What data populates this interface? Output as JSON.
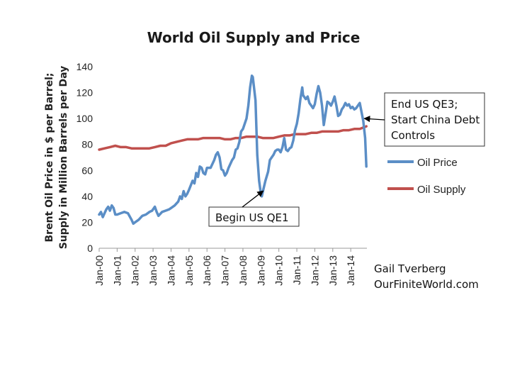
{
  "chart_data": {
    "type": "line",
    "title": "World Oil Supply and Price",
    "ylabel_lines": [
      "Brent Oil Price in $ per Barrel;",
      "Supply in Million Barrels per Day"
    ],
    "xlabel": "",
    "ylim": [
      0,
      140
    ],
    "yticks": [
      0,
      20,
      40,
      60,
      80,
      100,
      120,
      140
    ],
    "xlim": [
      2000,
      2014.9
    ],
    "xticks": [
      {
        "x": 2000,
        "label": "Jan-00"
      },
      {
        "x": 2001,
        "label": "Jan-01"
      },
      {
        "x": 2002,
        "label": "Jan-02"
      },
      {
        "x": 2003,
        "label": "Jan-03"
      },
      {
        "x": 2004,
        "label": "Jan-04"
      },
      {
        "x": 2005,
        "label": "Jan-05"
      },
      {
        "x": 2006,
        "label": "Jan-06"
      },
      {
        "x": 2007,
        "label": "Jan-07"
      },
      {
        "x": 2008,
        "label": "Jan-08"
      },
      {
        "x": 2009,
        "label": "Jan-09"
      },
      {
        "x": 2010,
        "label": "Jan-10"
      },
      {
        "x": 2011,
        "label": "Jan-11"
      },
      {
        "x": 2012,
        "label": "Jan-12"
      },
      {
        "x": 2013,
        "label": "Jan-13"
      },
      {
        "x": 2014,
        "label": "Jan-14"
      }
    ],
    "grid": false,
    "legend_position": "right",
    "series": [
      {
        "name": "Oil Price",
        "color": "#5b8ec6",
        "points": [
          [
            2000.0,
            26
          ],
          [
            2000.1,
            28
          ],
          [
            2000.2,
            24
          ],
          [
            2000.3,
            27
          ],
          [
            2000.4,
            30
          ],
          [
            2000.5,
            32
          ],
          [
            2000.6,
            29
          ],
          [
            2000.7,
            33
          ],
          [
            2000.8,
            31
          ],
          [
            2000.9,
            26
          ],
          [
            2001.0,
            26
          ],
          [
            2001.2,
            27
          ],
          [
            2001.4,
            28
          ],
          [
            2001.6,
            27
          ],
          [
            2001.8,
            22
          ],
          [
            2001.9,
            19
          ],
          [
            2002.0,
            20
          ],
          [
            2002.2,
            22
          ],
          [
            2002.4,
            25
          ],
          [
            2002.6,
            26
          ],
          [
            2002.8,
            28
          ],
          [
            2002.95,
            29
          ],
          [
            2003.1,
            32
          ],
          [
            2003.2,
            28
          ],
          [
            2003.3,
            25
          ],
          [
            2003.5,
            28
          ],
          [
            2003.7,
            29
          ],
          [
            2003.9,
            30
          ],
          [
            2004.0,
            31
          ],
          [
            2004.2,
            33
          ],
          [
            2004.4,
            36
          ],
          [
            2004.5,
            40
          ],
          [
            2004.6,
            38
          ],
          [
            2004.7,
            44
          ],
          [
            2004.8,
            40
          ],
          [
            2004.9,
            42
          ],
          [
            2005.0,
            45
          ],
          [
            2005.2,
            52
          ],
          [
            2005.3,
            50
          ],
          [
            2005.4,
            58
          ],
          [
            2005.5,
            55
          ],
          [
            2005.6,
            63
          ],
          [
            2005.7,
            62
          ],
          [
            2005.8,
            58
          ],
          [
            2005.9,
            57
          ],
          [
            2006.0,
            62
          ],
          [
            2006.2,
            62
          ],
          [
            2006.4,
            68
          ],
          [
            2006.5,
            72
          ],
          [
            2006.6,
            74
          ],
          [
            2006.7,
            70
          ],
          [
            2006.8,
            61
          ],
          [
            2006.9,
            60
          ],
          [
            2007.0,
            56
          ],
          [
            2007.1,
            58
          ],
          [
            2007.2,
            62
          ],
          [
            2007.4,
            68
          ],
          [
            2007.5,
            70
          ],
          [
            2007.6,
            76
          ],
          [
            2007.7,
            77
          ],
          [
            2007.8,
            82
          ],
          [
            2007.9,
            90
          ],
          [
            2008.0,
            92
          ],
          [
            2008.2,
            100
          ],
          [
            2008.3,
            110
          ],
          [
            2008.4,
            124
          ],
          [
            2008.5,
            133
          ],
          [
            2008.55,
            132
          ],
          [
            2008.7,
            114
          ],
          [
            2008.8,
            72
          ],
          [
            2008.9,
            52
          ],
          [
            2009.0,
            42
          ],
          [
            2009.05,
            40
          ],
          [
            2009.15,
            46
          ],
          [
            2009.25,
            52
          ],
          [
            2009.4,
            59
          ],
          [
            2009.5,
            68
          ],
          [
            2009.6,
            70
          ],
          [
            2009.7,
            72
          ],
          [
            2009.8,
            75
          ],
          [
            2009.9,
            76
          ],
          [
            2010.0,
            76
          ],
          [
            2010.1,
            74
          ],
          [
            2010.2,
            78
          ],
          [
            2010.3,
            85
          ],
          [
            2010.4,
            76
          ],
          [
            2010.5,
            75
          ],
          [
            2010.6,
            77
          ],
          [
            2010.7,
            78
          ],
          [
            2010.8,
            83
          ],
          [
            2010.9,
            91
          ],
          [
            2011.0,
            96
          ],
          [
            2011.1,
            104
          ],
          [
            2011.2,
            115
          ],
          [
            2011.3,
            124
          ],
          [
            2011.35,
            118
          ],
          [
            2011.5,
            115
          ],
          [
            2011.6,
            117
          ],
          [
            2011.7,
            112
          ],
          [
            2011.8,
            110
          ],
          [
            2011.9,
            108
          ],
          [
            2012.0,
            111
          ],
          [
            2012.1,
            119
          ],
          [
            2012.2,
            125
          ],
          [
            2012.3,
            120
          ],
          [
            2012.4,
            110
          ],
          [
            2012.5,
            95
          ],
          [
            2012.6,
            104
          ],
          [
            2012.7,
            113
          ],
          [
            2012.8,
            112
          ],
          [
            2012.9,
            110
          ],
          [
            2013.0,
            113
          ],
          [
            2013.1,
            117
          ],
          [
            2013.2,
            110
          ],
          [
            2013.3,
            102
          ],
          [
            2013.4,
            103
          ],
          [
            2013.5,
            107
          ],
          [
            2013.6,
            109
          ],
          [
            2013.7,
            112
          ],
          [
            2013.8,
            110
          ],
          [
            2013.9,
            111
          ],
          [
            2014.0,
            108
          ],
          [
            2014.1,
            109
          ],
          [
            2014.2,
            107
          ],
          [
            2014.3,
            108
          ],
          [
            2014.4,
            110
          ],
          [
            2014.5,
            112
          ],
          [
            2014.6,
            105
          ],
          [
            2014.7,
            98
          ],
          [
            2014.8,
            85
          ],
          [
            2014.87,
            63
          ]
        ]
      },
      {
        "name": "Oil Supply",
        "color": "#c0504d",
        "points": [
          [
            2000.0,
            76
          ],
          [
            2000.3,
            77
          ],
          [
            2000.6,
            78
          ],
          [
            2000.9,
            79
          ],
          [
            2001.2,
            78
          ],
          [
            2001.5,
            78
          ],
          [
            2001.8,
            77
          ],
          [
            2002.1,
            77
          ],
          [
            2002.5,
            77
          ],
          [
            2002.8,
            77
          ],
          [
            2003.1,
            78
          ],
          [
            2003.4,
            79
          ],
          [
            2003.7,
            79
          ],
          [
            2004.0,
            81
          ],
          [
            2004.3,
            82
          ],
          [
            2004.6,
            83
          ],
          [
            2004.9,
            84
          ],
          [
            2005.2,
            84
          ],
          [
            2005.5,
            84
          ],
          [
            2005.8,
            85
          ],
          [
            2006.1,
            85
          ],
          [
            2006.4,
            85
          ],
          [
            2006.7,
            85
          ],
          [
            2007.0,
            84
          ],
          [
            2007.3,
            84
          ],
          [
            2007.6,
            85
          ],
          [
            2007.9,
            85
          ],
          [
            2008.2,
            86
          ],
          [
            2008.5,
            86
          ],
          [
            2008.8,
            86
          ],
          [
            2009.1,
            85
          ],
          [
            2009.4,
            85
          ],
          [
            2009.7,
            85
          ],
          [
            2010.0,
            86
          ],
          [
            2010.3,
            87
          ],
          [
            2010.6,
            87
          ],
          [
            2010.9,
            88
          ],
          [
            2011.2,
            88
          ],
          [
            2011.5,
            88
          ],
          [
            2011.8,
            89
          ],
          [
            2012.1,
            89
          ],
          [
            2012.4,
            90
          ],
          [
            2012.7,
            90
          ],
          [
            2013.0,
            90
          ],
          [
            2013.3,
            90
          ],
          [
            2013.6,
            91
          ],
          [
            2013.9,
            91
          ],
          [
            2014.2,
            92
          ],
          [
            2014.5,
            92
          ],
          [
            2014.87,
            94
          ]
        ]
      }
    ],
    "annotations": [
      {
        "id": "qe3",
        "lines": [
          "End US QE3;",
          "Start China Debt",
          "Controls"
        ],
        "arrow_to": [
          2014.75,
          100
        ]
      },
      {
        "id": "qe1",
        "lines": [
          "Begin US QE1"
        ],
        "arrow_to": [
          2009.05,
          42
        ]
      }
    ]
  },
  "credit": {
    "author": "Gail Tverberg",
    "site": "OurFiniteWorld.com"
  }
}
